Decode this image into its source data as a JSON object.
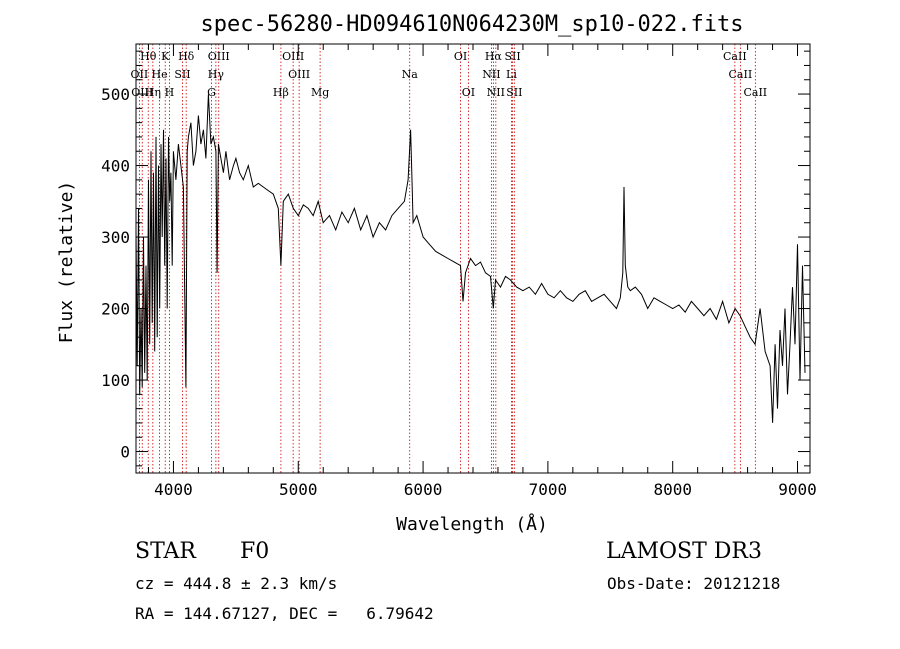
{
  "chart_data": {
    "type": "line",
    "title": "spec-56280-HD094610N064230M_sp10-022.fits",
    "xlabel": "Wavelength (Å)",
    "ylabel": "Flux (relative)",
    "xlim": [
      3700,
      9100
    ],
    "ylim": [
      -30,
      570
    ],
    "xticks": [
      4000,
      5000,
      6000,
      7000,
      8000,
      9000
    ],
    "yticks": [
      0,
      100,
      200,
      300,
      400,
      500
    ],
    "grid": false,
    "series": [
      {
        "x": [
          3700,
          3710,
          3720,
          3730,
          3740,
          3750,
          3760,
          3770,
          3780,
          3790,
          3800,
          3810,
          3820,
          3830,
          3840,
          3850,
          3860,
          3870,
          3880,
          3890,
          3900,
          3910,
          3920,
          3930,
          3940,
          3950,
          3960,
          3970,
          3980,
          3990,
          4000,
          4020,
          4040,
          4060,
          4080,
          4100,
          4110,
          4120,
          4140,
          4160,
          4180,
          4200,
          4220,
          4240,
          4260,
          4280,
          4300,
          4320,
          4340,
          4350,
          4360,
          4380,
          4400,
          4420,
          4450,
          4480,
          4500,
          4530,
          4560,
          4600,
          4640,
          4680,
          4720,
          4760,
          4800,
          4840,
          4861,
          4880,
          4920,
          4960,
          5000,
          5040,
          5080,
          5120,
          5160,
          5200,
          5250,
          5300,
          5350,
          5400,
          5450,
          5500,
          5550,
          5600,
          5650,
          5700,
          5750,
          5800,
          5850,
          5880,
          5900,
          5910,
          5920,
          5950,
          6000,
          6050,
          6100,
          6150,
          6200,
          6250,
          6300,
          6320,
          6340,
          6380,
          6420,
          6460,
          6500,
          6540,
          6563,
          6580,
          6620,
          6660,
          6700,
          6750,
          6800,
          6850,
          6900,
          6950,
          7000,
          7050,
          7100,
          7150,
          7200,
          7250,
          7300,
          7350,
          7400,
          7450,
          7500,
          7550,
          7580,
          7600,
          7610,
          7620,
          7640,
          7660,
          7700,
          7750,
          7800,
          7850,
          7900,
          7950,
          8000,
          8050,
          8100,
          8150,
          8200,
          8250,
          8300,
          8350,
          8400,
          8450,
          8500,
          8540,
          8580,
          8620,
          8660,
          8700,
          8740,
          8780,
          8800,
          8820,
          8840,
          8860,
          8880,
          8900,
          8920,
          8940,
          8960,
          8980,
          9000,
          9020,
          9040,
          9060
        ],
        "y": [
          310,
          120,
          340,
          80,
          200,
          90,
          300,
          110,
          260,
          100,
          380,
          150,
          420,
          180,
          390,
          140,
          440,
          160,
          400,
          200,
          430,
          300,
          450,
          260,
          410,
          200,
          440,
          350,
          390,
          260,
          420,
          380,
          430,
          400,
          370,
          90,
          420,
          440,
          460,
          400,
          420,
          470,
          430,
          450,
          410,
          500,
          430,
          440,
          420,
          250,
          430,
          410,
          390,
          420,
          380,
          400,
          410,
          390,
          380,
          400,
          370,
          375,
          370,
          365,
          360,
          340,
          260,
          350,
          360,
          340,
          330,
          345,
          340,
          330,
          350,
          320,
          330,
          310,
          335,
          320,
          340,
          310,
          330,
          300,
          320,
          310,
          330,
          340,
          350,
          380,
          450,
          390,
          320,
          330,
          300,
          290,
          280,
          275,
          270,
          265,
          260,
          210,
          250,
          270,
          260,
          265,
          250,
          245,
          200,
          240,
          230,
          245,
          240,
          230,
          225,
          230,
          220,
          235,
          220,
          215,
          225,
          215,
          210,
          220,
          225,
          210,
          215,
          220,
          210,
          200,
          215,
          250,
          370,
          260,
          230,
          225,
          230,
          220,
          200,
          215,
          210,
          205,
          200,
          205,
          195,
          210,
          200,
          190,
          200,
          185,
          210,
          180,
          200,
          190,
          175,
          160,
          150,
          200,
          140,
          120,
          40,
          150,
          60,
          170,
          120,
          200,
          80,
          150,
          230,
          150,
          290,
          100,
          260,
          110
        ]
      }
    ],
    "lines": [
      {
        "label": "Hθ",
        "x": 3798,
        "row": 0
      },
      {
        "label": "K",
        "x": 3934,
        "row": 0
      },
      {
        "label": "Hδ",
        "x": 4102,
        "row": 0
      },
      {
        "label": "OIII",
        "x": 4363,
        "row": 0
      },
      {
        "label": "OIII",
        "x": 4959,
        "row": 0
      },
      {
        "label": "OI",
        "x": 6300,
        "row": 0
      },
      {
        "label": "Hα",
        "x": 6563,
        "row": 0
      },
      {
        "label": "SII",
        "x": 6717,
        "row": 0
      },
      {
        "label": "CaII",
        "x": 8498,
        "row": 0
      },
      {
        "label": "OII",
        "x": 3727,
        "row": 1
      },
      {
        "label": "He",
        "x": 3889,
        "row": 1
      },
      {
        "label": "SII",
        "x": 4072,
        "row": 1
      },
      {
        "label": "Hγ",
        "x": 4340,
        "row": 1
      },
      {
        "label": "OIII",
        "x": 5007,
        "row": 1
      },
      {
        "label": "NII",
        "x": 6548,
        "row": 1
      },
      {
        "label": "Li",
        "x": 6708,
        "row": 1
      },
      {
        "label": "CaII",
        "x": 8542,
        "row": 1
      },
      {
        "label": "OIII",
        "x": 3750,
        "row": 2
      },
      {
        "label": "Hη",
        "x": 3835,
        "row": 2
      },
      {
        "label": "H",
        "x": 3968,
        "row": 2
      },
      {
        "label": "G",
        "x": 4305,
        "row": 2
      },
      {
        "label": "Hβ",
        "x": 4861,
        "row": 2
      },
      {
        "label": "Mg",
        "x": 5175,
        "row": 2
      },
      {
        "label": "Na",
        "x": 5893,
        "row": 1
      },
      {
        "label": "OI",
        "x": 6363,
        "row": 2
      },
      {
        "label": "NII",
        "x": 6583,
        "row": 2
      },
      {
        "label": "SII",
        "x": 6731,
        "row": 2
      },
      {
        "label": "CaII",
        "x": 8662,
        "row": 2
      }
    ]
  },
  "info": {
    "object_type": "STAR",
    "subclass": "F0",
    "survey": "LAMOST DR3",
    "cz": "cz = 444.8 ± 2.3 km/s",
    "obs_date": "Obs-Date: 20121218",
    "radec": "RA = 144.67127, DEC =   6.79642"
  },
  "colors": {
    "line_marker": "#cc0000",
    "spectrum": "#000000"
  }
}
